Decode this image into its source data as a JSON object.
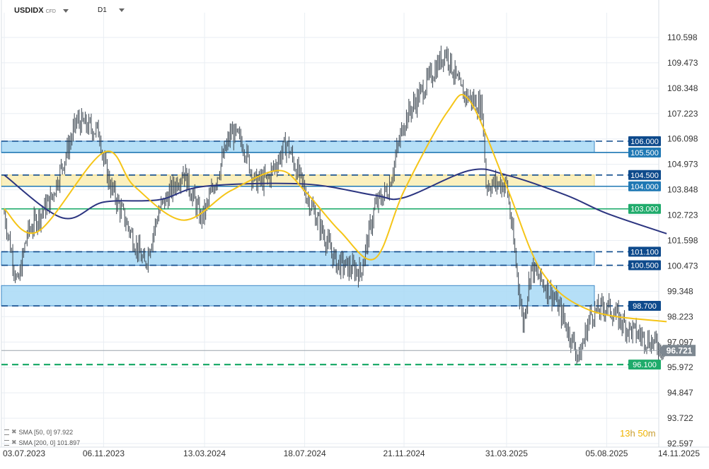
{
  "header": {
    "symbol": "USDIDX",
    "symbol_tag": "CFD",
    "timeframe": "D1"
  },
  "indicators": [
    {
      "label": "SMA [50, 0] 97.922"
    },
    {
      "label": "SMA [200, 0] 101.897"
    }
  ],
  "timer": {
    "hours": "13",
    "h_unit": "h",
    "minutes": "50",
    "m_unit": "m"
  },
  "colors": {
    "price": "#3c4650",
    "sma50": "#f5c518",
    "sma200": "#2c3580",
    "zone_blue_fill": "#aedcf7",
    "zone_blue_edge": "#1f78b4",
    "zone_yellow_fill": "#fbefb8",
    "dark_blue": "#0e4a8c",
    "green": "#1fab6b",
    "current_price": "#7d8790"
  },
  "chart_data": {
    "type": "candlestick",
    "title": "",
    "xlabel": "",
    "ylabel": "",
    "x_ticks": [
      "03.07.2023",
      "06.11.2023",
      "13.03.2024",
      "18.07.2024",
      "21.11.2024",
      "31.03.2025",
      "05.08.2025",
      "14.11.2025"
    ],
    "y_ticks": [
      "110.598",
      "109.473",
      "108.348",
      "107.223",
      "106.098",
      "104.973",
      "103.848",
      "102.723",
      "101.598",
      "100.473",
      "99.348",
      "98.223",
      "97.097",
      "95.972",
      "94.847",
      "93.722",
      "92.597"
    ],
    "ylim": [
      92.597,
      110.598
    ],
    "xlim": [
      "03.07.2023",
      "14.11.2025"
    ],
    "grid": true,
    "price_path": [
      [
        "03.07.2023",
        102.8
      ],
      [
        "20.07.2023",
        99.6
      ],
      [
        "01.08.2023",
        101.9
      ],
      [
        "01.09.2023",
        103.5
      ],
      [
        "03.10.2023",
        106.9
      ],
      [
        "01.11.2023",
        106.4
      ],
      [
        "06.11.2023",
        105.1
      ],
      [
        "15.11.2023",
        104.0
      ],
      [
        "28.12.2023",
        100.5
      ],
      [
        "15.01.2024",
        102.9
      ],
      [
        "15.02.2024",
        104.7
      ],
      [
        "08.03.2024",
        102.6
      ],
      [
        "13.03.2024",
        102.8
      ],
      [
        "16.04.2024",
        106.4
      ],
      [
        "01.05.2024",
        105.9
      ],
      [
        "15.05.2024",
        104.2
      ],
      [
        "01.06.2024",
        104.3
      ],
      [
        "25.06.2024",
        105.9
      ],
      [
        "18.07.2024",
        103.8
      ],
      [
        "02.08.2024",
        102.6
      ],
      [
        "27.08.2024",
        100.6
      ],
      [
        "27.09.2024",
        100.2
      ],
      [
        "15.10.2024",
        103.1
      ],
      [
        "01.11.2024",
        103.9
      ],
      [
        "21.11.2024",
        106.9
      ],
      [
        "13.01.2025",
        110.0
      ],
      [
        "01.02.2025",
        108.2
      ],
      [
        "28.02.2025",
        107.5
      ],
      [
        "05.03.2025",
        104.1
      ],
      [
        "31.03.2025",
        104.1
      ],
      [
        "21.04.2025",
        97.9
      ],
      [
        "01.05.2025",
        100.4
      ],
      [
        "01.06.2025",
        99.0
      ],
      [
        "01.07.2025",
        96.4
      ],
      [
        "15.07.2025",
        98.3
      ],
      [
        "05.08.2025",
        98.7
      ],
      [
        "01.09.2025",
        97.7
      ],
      [
        "20.10.2025",
        96.721
      ]
    ],
    "series": [
      {
        "name": "SMA [50, 0] 97.922",
        "x": [
          "03.07.2023",
          "15.08.2023",
          "06.11.2023",
          "15.12.2023",
          "15.02.2024",
          "15.04.2024",
          "15.06.2024",
          "18.07.2024",
          "01.09.2024",
          "15.10.2024",
          "21.11.2024",
          "15.01.2025",
          "12.02.2025",
          "31.03.2025",
          "15.05.2025",
          "15.07.2025",
          "20.10.2025"
        ],
        "values": [
          103.0,
          102.0,
          105.5,
          104.0,
          102.5,
          103.8,
          104.7,
          103.8,
          102.0,
          100.8,
          103.8,
          107.3,
          107.8,
          104.0,
          100.2,
          98.5,
          98.0
        ]
      },
      {
        "name": "SMA [200, 0] 101.897",
        "x": [
          "03.07.2023",
          "15.09.2023",
          "06.11.2023",
          "15.01.2024",
          "13.03.2024",
          "18.07.2024",
          "15.10.2024",
          "21.11.2024",
          "12.02.2025",
          "31.03.2025",
          "15.06.2025",
          "05.08.2025",
          "20.10.2025"
        ],
        "values": [
          104.5,
          102.6,
          103.3,
          103.4,
          104.0,
          104.1,
          103.6,
          103.5,
          104.7,
          104.5,
          103.6,
          102.8,
          101.9
        ]
      }
    ],
    "zones": [
      {
        "type": "blue",
        "low": 105.5,
        "high": 106.0
      },
      {
        "type": "yellow",
        "low": 104.0,
        "high": 104.5
      },
      {
        "type": "blue",
        "low": 100.5,
        "high": 101.1
      },
      {
        "type": "blue",
        "low": 98.7,
        "high": 99.6
      }
    ],
    "levels": [
      {
        "label": "106.000",
        "value": 106.0,
        "style": "dashed",
        "color": "#0e4a8c",
        "label_color": "#0e4a8c"
      },
      {
        "label": "105.500",
        "value": 105.5,
        "style": "solid",
        "color": "#1f78b4",
        "label_color": "#1f78b4"
      },
      {
        "label": "104.500",
        "value": 104.5,
        "style": "dashed",
        "color": "#0e4a8c",
        "label_color": "#0e4a8c"
      },
      {
        "label": "104.000",
        "value": 104.0,
        "style": "solid",
        "color": "#1f78b4",
        "label_color": "#1f78b4"
      },
      {
        "label": "103.000",
        "value": 103.0,
        "style": "solid",
        "color": "#1fab6b",
        "label_color": "#1fab6b"
      },
      {
        "label": "101.100",
        "value": 101.1,
        "style": "dashed",
        "color": "#0e4a8c",
        "label_color": "#0e4a8c"
      },
      {
        "label": "100.500",
        "value": 100.5,
        "style": "dashed",
        "color": "#0e4a8c",
        "label_color": "#0e4a8c"
      },
      {
        "label": "98.700",
        "value": 98.7,
        "style": "dashed",
        "color": "#0e4a8c",
        "label_color": "#0e4a8c"
      },
      {
        "label": "96.100",
        "value": 96.1,
        "style": "dashed",
        "color": "#1fab6b",
        "label_color": "#1fab6b"
      }
    ],
    "current_price": {
      "label": "96.721",
      "value": 96.721
    }
  }
}
